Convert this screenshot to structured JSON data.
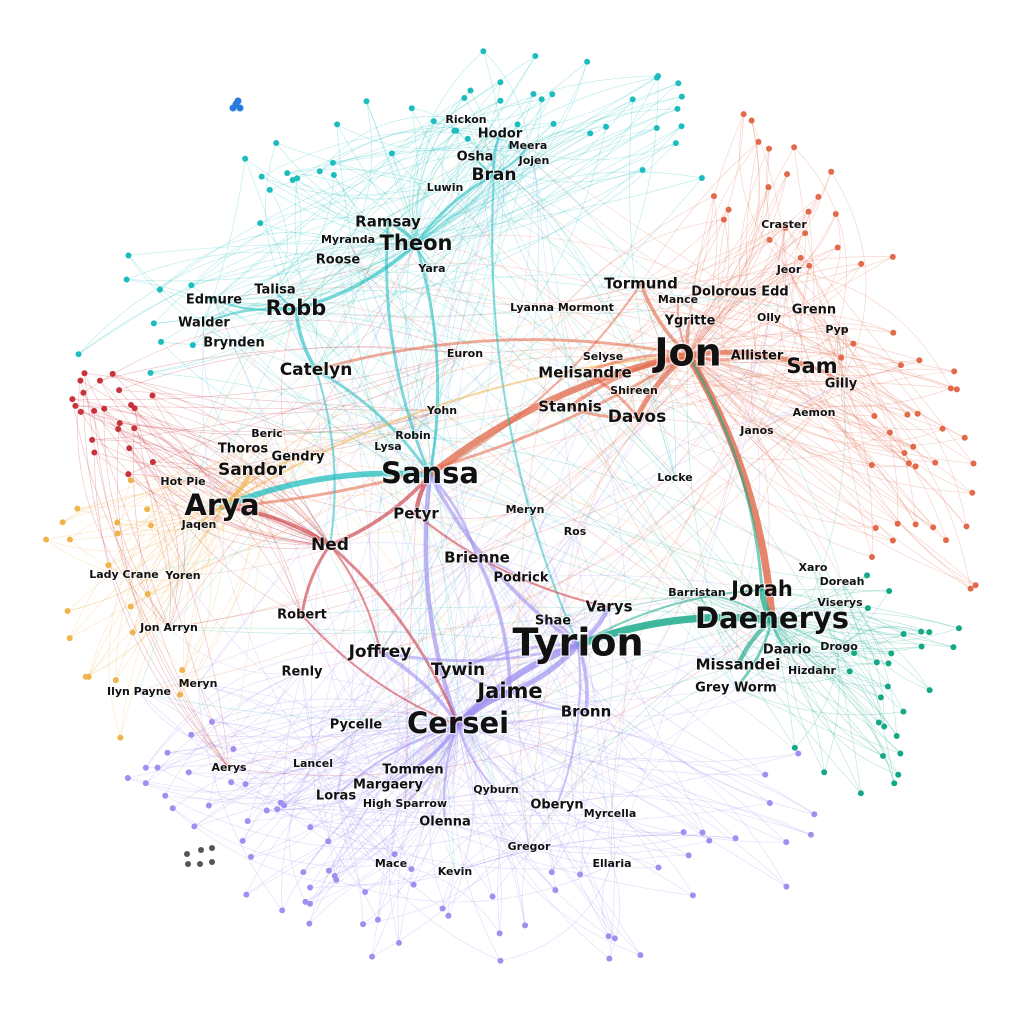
{
  "colors": {
    "north": "#1bbdbf",
    "wall": "#e2694a",
    "lannister": "#9e8ff0",
    "essos": "#14a887",
    "arya": "#f0b44c",
    "red": "#c8323a",
    "grey": "#555555",
    "blue": "#2a7be0"
  },
  "characters": [
    {
      "id": "jon",
      "label": "Jon",
      "group": "wall",
      "size": "xl"
    },
    {
      "id": "tyrion",
      "label": "Tyrion",
      "group": "lannister",
      "size": "xl"
    },
    {
      "id": "daenerys",
      "label": "Daenerys",
      "group": "essos",
      "size": "l"
    },
    {
      "id": "cersei",
      "label": "Cersei",
      "group": "lannister",
      "size": "l"
    },
    {
      "id": "sansa",
      "label": "Sansa",
      "group": "north",
      "size": "l"
    },
    {
      "id": "arya",
      "label": "Arya",
      "group": "arya",
      "size": "l"
    },
    {
      "id": "jaime",
      "label": "Jaime",
      "group": "lannister",
      "size": "ml"
    },
    {
      "id": "jorah",
      "label": "Jorah",
      "group": "essos",
      "size": "ml"
    },
    {
      "id": "theon",
      "label": "Theon",
      "group": "north",
      "size": "ml"
    },
    {
      "id": "robb",
      "label": "Robb",
      "group": "north",
      "size": "ml"
    },
    {
      "id": "sam",
      "label": "Sam",
      "group": "wall",
      "size": "ml"
    },
    {
      "id": "ned",
      "label": "Ned",
      "group": "red",
      "size": "m"
    },
    {
      "id": "bran",
      "label": "Bran",
      "group": "north",
      "size": "m"
    },
    {
      "id": "catelyn",
      "label": "Catelyn",
      "group": "north",
      "size": "m"
    },
    {
      "id": "davos",
      "label": "Davos",
      "group": "wall",
      "size": "m"
    },
    {
      "id": "joffrey",
      "label": "Joffrey",
      "group": "lannister",
      "size": "m"
    },
    {
      "id": "tywin",
      "label": "Tywin",
      "group": "lannister",
      "size": "m"
    },
    {
      "id": "sandor",
      "label": "Sandor",
      "group": "arya",
      "size": "m"
    },
    {
      "id": "petyr",
      "label": "Petyr",
      "group": "red",
      "size": "s"
    },
    {
      "id": "tormund",
      "label": "Tormund",
      "group": "wall",
      "size": "s"
    },
    {
      "id": "melisandre",
      "label": "Melisandre",
      "group": "wall",
      "size": "s"
    },
    {
      "id": "stannis",
      "label": "Stannis",
      "group": "wall",
      "size": "s"
    },
    {
      "id": "brienne",
      "label": "Brienne",
      "group": "lannister",
      "size": "s"
    },
    {
      "id": "varys",
      "label": "Varys",
      "group": "lannister",
      "size": "s"
    },
    {
      "id": "bronn",
      "label": "Bronn",
      "group": "lannister",
      "size": "s"
    },
    {
      "id": "missandei",
      "label": "Missandei",
      "group": "essos",
      "size": "s"
    },
    {
      "id": "ramsay",
      "label": "Ramsay",
      "group": "north",
      "size": "s"
    },
    {
      "id": "podrick",
      "label": "Podrick",
      "group": "lannister",
      "size": "xs"
    },
    {
      "id": "ygritte",
      "label": "Ygritte",
      "group": "wall",
      "size": "xs"
    },
    {
      "id": "margaery",
      "label": "Margaery",
      "group": "lannister",
      "size": "xs"
    },
    {
      "id": "tommen",
      "label": "Tommen",
      "group": "lannister",
      "size": "xs"
    },
    {
      "id": "olenna",
      "label": "Olenna",
      "group": "lannister",
      "size": "xs"
    },
    {
      "id": "robert",
      "label": "Robert",
      "group": "red",
      "size": "xs"
    },
    {
      "id": "greyworm",
      "label": "Grey Worm",
      "group": "essos",
      "size": "xs"
    },
    {
      "id": "gilly",
      "label": "Gilly",
      "group": "wall",
      "size": "xs"
    },
    {
      "id": "talisa",
      "label": "Talisa",
      "group": "north",
      "size": "xs"
    },
    {
      "id": "allister",
      "label": "Allister",
      "group": "wall",
      "size": "xs"
    },
    {
      "id": "shae",
      "label": "Shae",
      "group": "lannister",
      "size": "xs"
    },
    {
      "id": "loras",
      "label": "Loras",
      "group": "lannister",
      "size": "xs"
    },
    {
      "id": "oberyn",
      "label": "Oberyn",
      "group": "lannister",
      "size": "xs"
    },
    {
      "id": "gendry",
      "label": "Gendry",
      "group": "arya",
      "size": "xs"
    },
    {
      "id": "roose",
      "label": "Roose",
      "group": "north",
      "size": "xs"
    },
    {
      "id": "walder",
      "label": "Walder",
      "group": "north",
      "size": "xs"
    },
    {
      "id": "edmure",
      "label": "Edmure",
      "group": "north",
      "size": "xs"
    },
    {
      "id": "brynden",
      "label": "Brynden",
      "group": "north",
      "size": "xs"
    },
    {
      "id": "pycelle",
      "label": "Pycelle",
      "group": "lannister",
      "size": "xs"
    },
    {
      "id": "renly",
      "label": "Renly",
      "group": "lannister",
      "size": "xs"
    },
    {
      "id": "barristan",
      "label": "Barristan",
      "group": "essos",
      "size": "xxs"
    },
    {
      "id": "daario",
      "label": "Daario",
      "group": "essos",
      "size": "xs"
    },
    {
      "id": "selyse",
      "label": "Selyse",
      "group": "wall",
      "size": "xxs"
    },
    {
      "id": "shireen",
      "label": "Shireen",
      "group": "wall",
      "size": "xxs"
    },
    {
      "id": "mance",
      "label": "Mance",
      "group": "wall",
      "size": "xxs"
    },
    {
      "id": "dolorous",
      "label": "Dolorous Edd",
      "group": "wall",
      "size": "xs"
    },
    {
      "id": "jeor",
      "label": "Jeor",
      "group": "wall",
      "size": "xxs"
    },
    {
      "id": "grenn",
      "label": "Grenn",
      "group": "wall",
      "size": "xs"
    },
    {
      "id": "olly",
      "label": "Olly",
      "group": "wall",
      "size": "xxs"
    },
    {
      "id": "pyp",
      "label": "Pyp",
      "group": "wall",
      "size": "xxs"
    },
    {
      "id": "aemon",
      "label": "Aemon",
      "group": "wall",
      "size": "xxs"
    },
    {
      "id": "craster",
      "label": "Craster",
      "group": "wall",
      "size": "xxs"
    },
    {
      "id": "janos",
      "label": "Janos",
      "group": "wall",
      "size": "xxs"
    },
    {
      "id": "lyanna",
      "label": "Lyanna Mormont",
      "group": "wall",
      "size": "xxs"
    },
    {
      "id": "euron",
      "label": "Euron",
      "group": "red",
      "size": "xxs"
    },
    {
      "id": "yara",
      "label": "Yara",
      "group": "north",
      "size": "xxs"
    },
    {
      "id": "myranda",
      "label": "Myranda",
      "group": "north",
      "size": "xxs"
    },
    {
      "id": "luwin",
      "label": "Luwin",
      "group": "north",
      "size": "xxs"
    },
    {
      "id": "osha",
      "label": "Osha",
      "group": "north",
      "size": "xs"
    },
    {
      "id": "hodor",
      "label": "Hodor",
      "group": "north",
      "size": "xs"
    },
    {
      "id": "meera",
      "label": "Meera",
      "group": "north",
      "size": "xxs"
    },
    {
      "id": "jojen",
      "label": "Jojen",
      "group": "north",
      "size": "xxs"
    },
    {
      "id": "rickon",
      "label": "Rickon",
      "group": "north",
      "size": "xxs"
    },
    {
      "id": "beric",
      "label": "Beric",
      "group": "arya",
      "size": "xxs"
    },
    {
      "id": "thoros",
      "label": "Thoros",
      "group": "arya",
      "size": "xs"
    },
    {
      "id": "hotpie",
      "label": "Hot Pie",
      "group": "arya",
      "size": "xxs"
    },
    {
      "id": "jaqen",
      "label": "Jaqen",
      "group": "arya",
      "size": "xxs"
    },
    {
      "id": "ladycrane",
      "label": "Lady Crane",
      "group": "arya",
      "size": "xxs"
    },
    {
      "id": "yoren",
      "label": "Yoren",
      "group": "arya",
      "size": "xxs"
    },
    {
      "id": "jonarryn",
      "label": "Jon Arryn",
      "group": "red",
      "size": "xxs"
    },
    {
      "id": "ilynpayne",
      "label": "Ilyn Payne",
      "group": "lannister",
      "size": "xxs"
    },
    {
      "id": "meryn1",
      "label": "Meryn",
      "group": "lannister",
      "size": "xxs"
    },
    {
      "id": "meryn2",
      "label": "Meryn",
      "group": "lannister",
      "size": "xxs"
    },
    {
      "id": "aerys",
      "label": "Aerys",
      "group": "red",
      "size": "xxs"
    },
    {
      "id": "lancel",
      "label": "Lancel",
      "group": "lannister",
      "size": "xxs"
    },
    {
      "id": "highsparrow",
      "label": "High Sparrow",
      "group": "lannister",
      "size": "xxs"
    },
    {
      "id": "qyburn",
      "label": "Qyburn",
      "group": "lannister",
      "size": "xxs"
    },
    {
      "id": "myrcella",
      "label": "Myrcella",
      "group": "lannister",
      "size": "xxs"
    },
    {
      "id": "gregor",
      "label": "Gregor",
      "group": "lannister",
      "size": "xxs"
    },
    {
      "id": "ellaria",
      "label": "Ellaria",
      "group": "lannister",
      "size": "xxs"
    },
    {
      "id": "mace",
      "label": "Mace",
      "group": "lannister",
      "size": "xxs"
    },
    {
      "id": "kevin",
      "label": "Kevin",
      "group": "lannister",
      "size": "xxs"
    },
    {
      "id": "lysa",
      "label": "Lysa",
      "group": "north",
      "size": "xxs"
    },
    {
      "id": "robin",
      "label": "Robin",
      "group": "north",
      "size": "xxs"
    },
    {
      "id": "yohn",
      "label": "Yohn",
      "group": "red",
      "size": "xxs"
    },
    {
      "id": "locke",
      "label": "Locke",
      "group": "north",
      "size": "xxs"
    },
    {
      "id": "ros",
      "label": "Ros",
      "group": "lannister",
      "size": "xxs"
    },
    {
      "id": "xaro",
      "label": "Xaro",
      "group": "essos",
      "size": "xxs"
    },
    {
      "id": "doreah",
      "label": "Doreah",
      "group": "essos",
      "size": "xxs"
    },
    {
      "id": "viserys",
      "label": "Viserys",
      "group": "essos",
      "size": "xxs"
    },
    {
      "id": "drogo",
      "label": "Drogo",
      "group": "essos",
      "size": "xxs"
    },
    {
      "id": "hizdahr",
      "label": "Hizdahr",
      "group": "essos",
      "size": "xxs"
    }
  ],
  "edges": [
    {
      "from": "jon",
      "to": "daenerys",
      "weight": 9,
      "group": "wall"
    },
    {
      "from": "jon",
      "to": "sansa",
      "weight": 8,
      "group": "wall"
    },
    {
      "from": "tyrion",
      "to": "daenerys",
      "weight": 9,
      "group": "essos"
    },
    {
      "from": "tyrion",
      "to": "cersei",
      "weight": 8,
      "group": "lannister"
    },
    {
      "from": "cersei",
      "to": "jaime",
      "weight": 8,
      "group": "lannister"
    },
    {
      "from": "sansa",
      "to": "arya",
      "weight": 7,
      "group": "north"
    },
    {
      "from": "jon",
      "to": "sam",
      "weight": 6,
      "group": "wall"
    },
    {
      "from": "jon",
      "to": "davos",
      "weight": 6,
      "group": "wall"
    },
    {
      "from": "daenerys",
      "to": "jorah",
      "weight": 7,
      "group": "essos"
    },
    {
      "from": "daenerys",
      "to": "missandei",
      "weight": 5,
      "group": "essos"
    },
    {
      "from": "tyrion",
      "to": "jaime",
      "weight": 6,
      "group": "lannister"
    },
    {
      "from": "tyrion",
      "to": "varys",
      "weight": 5,
      "group": "lannister"
    },
    {
      "from": "tyrion",
      "to": "bronn",
      "weight": 4,
      "group": "lannister"
    },
    {
      "from": "sansa",
      "to": "petyr",
      "weight": 5,
      "group": "red"
    },
    {
      "from": "sansa",
      "to": "ned",
      "weight": 4,
      "group": "red"
    },
    {
      "from": "sansa",
      "to": "cersei",
      "weight": 5,
      "group": "lannister"
    },
    {
      "from": "arya",
      "to": "ned",
      "weight": 4,
      "group": "red"
    },
    {
      "from": "arya",
      "to": "sandor",
      "weight": 5,
      "group": "arya"
    },
    {
      "from": "jon",
      "to": "tormund",
      "weight": 4,
      "group": "wall"
    },
    {
      "from": "jon",
      "to": "stannis",
      "weight": 4,
      "group": "wall"
    },
    {
      "from": "theon",
      "to": "robb",
      "weight": 4,
      "group": "north"
    },
    {
      "from": "theon",
      "to": "ramsay",
      "weight": 4,
      "group": "north"
    },
    {
      "from": "theon",
      "to": "bran",
      "weight": 3,
      "group": "north"
    },
    {
      "from": "robb",
      "to": "catelyn",
      "weight": 4,
      "group": "north"
    },
    {
      "from": "catelyn",
      "to": "sansa",
      "weight": 3,
      "group": "north"
    },
    {
      "from": "jon",
      "to": "catelyn",
      "weight": 3,
      "group": "wall"
    },
    {
      "from": "jon",
      "to": "arya",
      "weight": 3,
      "group": "wall"
    },
    {
      "from": "ned",
      "to": "robert",
      "weight": 3,
      "group": "red"
    },
    {
      "from": "ned",
      "to": "cersei",
      "weight": 3,
      "group": "red"
    },
    {
      "from": "cersei",
      "to": "joffrey",
      "weight": 4,
      "group": "lannister"
    },
    {
      "from": "tyrion",
      "to": "joffrey",
      "weight": 3,
      "group": "lannister"
    },
    {
      "from": "tyrion",
      "to": "tywin",
      "weight": 3,
      "group": "lannister"
    },
    {
      "from": "tyrion",
      "to": "sansa",
      "weight": 4,
      "group": "lannister"
    },
    {
      "from": "jaime",
      "to": "brienne",
      "weight": 4,
      "group": "lannister"
    },
    {
      "from": "davos",
      "to": "stannis",
      "weight": 3,
      "group": "wall"
    },
    {
      "from": "davos",
      "to": "melisandre",
      "weight": 3,
      "group": "wall"
    },
    {
      "from": "theon",
      "to": "sansa",
      "weight": 3,
      "group": "north"
    },
    {
      "from": "bran",
      "to": "tyrion",
      "weight": 2,
      "group": "north"
    },
    {
      "from": "bran",
      "to": "hodor",
      "weight": 3,
      "group": "north"
    },
    {
      "from": "jorah",
      "to": "jon",
      "weight": 3,
      "group": "essos"
    },
    {
      "from": "cersei",
      "to": "margaery",
      "weight": 3,
      "group": "lannister"
    },
    {
      "from": "cersei",
      "to": "qyburn",
      "weight": 2,
      "group": "lannister"
    },
    {
      "from": "cersei",
      "to": "tommen",
      "weight": 3,
      "group": "lannister"
    },
    {
      "from": "cersei",
      "to": "olenna",
      "weight": 2,
      "group": "lannister"
    },
    {
      "from": "tyrion",
      "to": "oberyn",
      "weight": 2,
      "group": "lannister"
    },
    {
      "from": "tyrion",
      "to": "shae",
      "weight": 3,
      "group": "lannister"
    },
    {
      "from": "jon",
      "to": "ygritte",
      "weight": 3,
      "group": "wall"
    },
    {
      "from": "jon",
      "to": "allister",
      "weight": 3,
      "group": "wall"
    },
    {
      "from": "sam",
      "to": "gilly",
      "weight": 3,
      "group": "wall"
    },
    {
      "from": "daenerys",
      "to": "daario",
      "weight": 3,
      "group": "essos"
    },
    {
      "from": "daenerys",
      "to": "greyworm",
      "weight": 3,
      "group": "essos"
    },
    {
      "from": "daenerys",
      "to": "barristan",
      "weight": 2,
      "group": "essos"
    },
    {
      "from": "arya",
      "to": "gendry",
      "weight": 2,
      "group": "arya"
    },
    {
      "from": "arya",
      "to": "jaqen",
      "weight": 2,
      "group": "arya"
    },
    {
      "from": "robb",
      "to": "talisa",
      "weight": 2,
      "group": "north"
    },
    {
      "from": "robb",
      "to": "walder",
      "weight": 2,
      "group": "north"
    },
    {
      "from": "robb",
      "to": "edmure",
      "weight": 2,
      "group": "north"
    },
    {
      "from": "petyr",
      "to": "varys",
      "weight": 2,
      "group": "red"
    },
    {
      "from": "ned",
      "to": "joffrey",
      "weight": 2,
      "group": "red"
    },
    {
      "from": "robert",
      "to": "cersei",
      "weight": 2,
      "group": "red"
    },
    {
      "from": "brienne",
      "to": "podrick",
      "weight": 2,
      "group": "lannister"
    },
    {
      "from": "brienne",
      "to": "sansa",
      "weight": 3,
      "group": "lannister"
    },
    {
      "from": "sansa",
      "to": "ramsay",
      "weight": 3,
      "group": "north"
    },
    {
      "from": "sansa",
      "to": "tormund",
      "weight": 2,
      "group": "wall"
    },
    {
      "from": "arya",
      "to": "jon",
      "weight": 2,
      "group": "arya"
    },
    {
      "from": "jaime",
      "to": "bronn",
      "weight": 2,
      "group": "lannister"
    },
    {
      "from": "jaime",
      "to": "tywin",
      "weight": 2,
      "group": "lannister"
    },
    {
      "from": "cersei",
      "to": "loras",
      "weight": 2,
      "group": "lannister"
    },
    {
      "from": "cersei",
      "to": "highsparrow",
      "weight": 2,
      "group": "lannister"
    },
    {
      "from": "jon",
      "to": "melisandre",
      "weight": 3,
      "group": "wall"
    },
    {
      "from": "jon",
      "to": "mance",
      "weight": 2,
      "group": "wall"
    },
    {
      "from": "bran",
      "to": "meera",
      "weight": 2,
      "group": "north"
    },
    {
      "from": "bran",
      "to": "osha",
      "weight": 2,
      "group": "north"
    },
    {
      "from": "theon",
      "to": "yara",
      "weight": 2,
      "group": "north"
    },
    {
      "from": "catelyn",
      "to": "ned",
      "weight": 2,
      "group": "north"
    },
    {
      "from": "jorah",
      "to": "tyrion",
      "weight": 2,
      "group": "essos"
    }
  ]
}
